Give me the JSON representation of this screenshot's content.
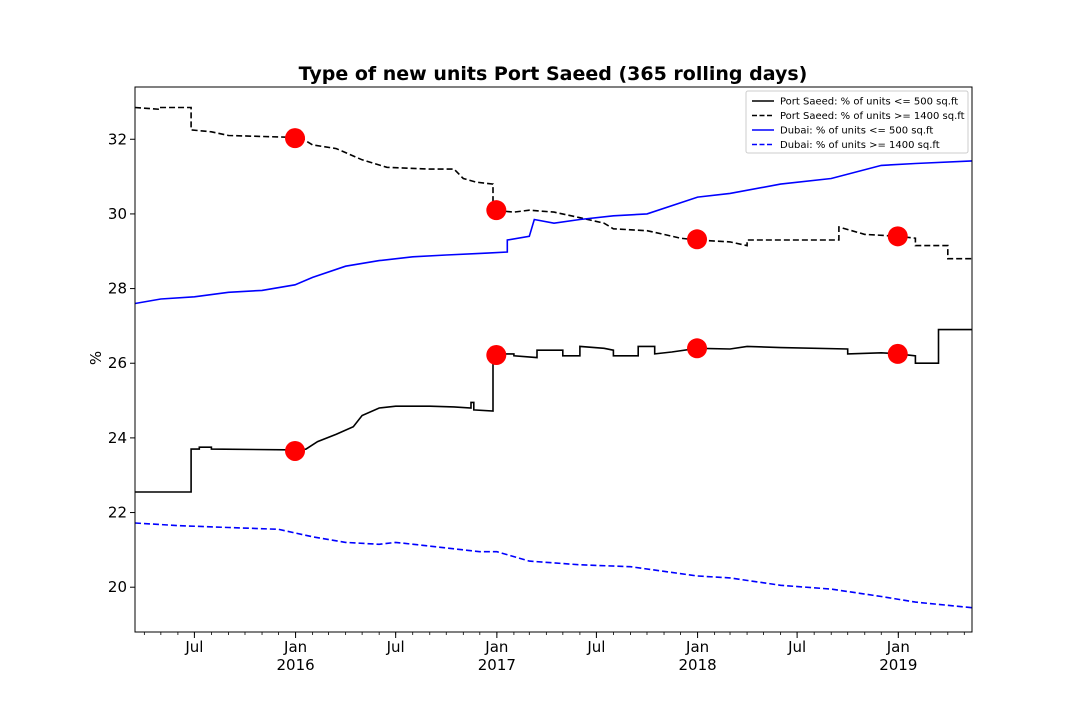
{
  "chart_data": {
    "type": "line",
    "title": "Type of new units Port Saeed (365 rolling days)",
    "xlabel": "",
    "ylabel": "%",
    "xlim": [
      "2015-03-15",
      "2019-05-15"
    ],
    "ylim": [
      18.8,
      33.4
    ],
    "yticks": [
      20,
      22,
      24,
      26,
      28,
      30,
      32
    ],
    "xticks": [
      {
        "date": "2015-07-01",
        "label": "Jul",
        "sub": ""
      },
      {
        "date": "2016-01-01",
        "label": "Jan",
        "sub": "2016"
      },
      {
        "date": "2016-07-01",
        "label": "Jul",
        "sub": ""
      },
      {
        "date": "2017-01-01",
        "label": "Jan",
        "sub": "2017"
      },
      {
        "date": "2017-07-01",
        "label": "Jul",
        "sub": ""
      },
      {
        "date": "2018-01-01",
        "label": "Jan",
        "sub": "2018"
      },
      {
        "date": "2018-07-01",
        "label": "Jul",
        "sub": ""
      },
      {
        "date": "2019-01-01",
        "label": "Jan",
        "sub": "2019"
      }
    ],
    "grid": false,
    "legend_position": "top-right",
    "series": [
      {
        "name": "Port Saeed: % of units <= 500 sq.ft",
        "color": "#000000",
        "dash": "solid",
        "points": [
          [
            "2015-03-15",
            22.55
          ],
          [
            "2015-06-25",
            22.55
          ],
          [
            "2015-06-25",
            23.7
          ],
          [
            "2015-07-10",
            23.7
          ],
          [
            "2015-07-10",
            23.75
          ],
          [
            "2015-08-01",
            23.75
          ],
          [
            "2015-08-01",
            23.7
          ],
          [
            "2015-12-15",
            23.68
          ],
          [
            "2015-12-31",
            23.65
          ],
          [
            "2016-01-20",
            23.7
          ],
          [
            "2016-02-10",
            23.9
          ],
          [
            "2016-03-15",
            24.1
          ],
          [
            "2016-04-15",
            24.3
          ],
          [
            "2016-05-01",
            24.6
          ],
          [
            "2016-06-01",
            24.8
          ],
          [
            "2016-07-01",
            24.85
          ],
          [
            "2016-09-01",
            24.85
          ],
          [
            "2016-10-15",
            24.83
          ],
          [
            "2016-11-15",
            24.8
          ],
          [
            "2016-11-15",
            24.95
          ],
          [
            "2016-11-20",
            24.95
          ],
          [
            "2016-11-20",
            24.75
          ],
          [
            "2016-12-25",
            24.72
          ],
          [
            "2016-12-25",
            26.25
          ],
          [
            "2017-02-01",
            26.25
          ],
          [
            "2017-02-01",
            26.2
          ],
          [
            "2017-03-15",
            26.15
          ],
          [
            "2017-03-15",
            26.35
          ],
          [
            "2017-05-01",
            26.35
          ],
          [
            "2017-05-01",
            26.2
          ],
          [
            "2017-06-01",
            26.2
          ],
          [
            "2017-06-01",
            26.45
          ],
          [
            "2017-07-15",
            26.4
          ],
          [
            "2017-08-01",
            26.35
          ],
          [
            "2017-08-01",
            26.2
          ],
          [
            "2017-09-15",
            26.2
          ],
          [
            "2017-09-15",
            26.45
          ],
          [
            "2017-10-15",
            26.45
          ],
          [
            "2017-10-15",
            26.25
          ],
          [
            "2017-11-15",
            26.3
          ],
          [
            "2018-01-01",
            26.4
          ],
          [
            "2018-03-01",
            26.38
          ],
          [
            "2018-04-01",
            26.45
          ],
          [
            "2018-06-01",
            26.42
          ],
          [
            "2018-10-01",
            26.38
          ],
          [
            "2018-10-01",
            26.25
          ],
          [
            "2018-12-01",
            26.28
          ],
          [
            "2019-01-01",
            26.25
          ],
          [
            "2019-02-01",
            26.2
          ],
          [
            "2019-02-01",
            26.0
          ],
          [
            "2019-03-15",
            26.0
          ],
          [
            "2019-03-15",
            26.9
          ],
          [
            "2019-05-15",
            26.9
          ]
        ]
      },
      {
        "name": "Port Saeed: % of units >= 1400 sq.ft",
        "color": "#000000",
        "dash": "dashed",
        "points": [
          [
            "2015-03-15",
            32.85
          ],
          [
            "2015-05-01",
            32.8
          ],
          [
            "2015-05-01",
            32.85
          ],
          [
            "2015-06-25",
            32.85
          ],
          [
            "2015-06-25",
            32.25
          ],
          [
            "2015-08-01",
            32.2
          ],
          [
            "2015-09-01",
            32.1
          ],
          [
            "2015-12-31",
            32.05
          ],
          [
            "2016-01-15",
            32.0
          ],
          [
            "2016-02-01",
            31.85
          ],
          [
            "2016-03-15",
            31.75
          ],
          [
            "2016-05-01",
            31.45
          ],
          [
            "2016-06-15",
            31.25
          ],
          [
            "2016-09-01",
            31.2
          ],
          [
            "2016-10-15",
            31.2
          ],
          [
            "2016-11-01",
            30.95
          ],
          [
            "2016-11-25",
            30.85
          ],
          [
            "2016-12-25",
            30.8
          ],
          [
            "2016-12-25",
            30.1
          ],
          [
            "2017-02-01",
            30.05
          ],
          [
            "2017-03-01",
            30.1
          ],
          [
            "2017-04-15",
            30.05
          ],
          [
            "2017-06-01",
            29.9
          ],
          [
            "2017-07-15",
            29.75
          ],
          [
            "2017-08-01",
            29.6
          ],
          [
            "2017-10-01",
            29.55
          ],
          [
            "2017-11-01",
            29.45
          ],
          [
            "2017-12-01",
            29.35
          ],
          [
            "2018-01-01",
            29.3
          ],
          [
            "2018-03-01",
            29.25
          ],
          [
            "2018-04-01",
            29.15
          ],
          [
            "2018-04-01",
            29.3
          ],
          [
            "2018-06-01",
            29.3
          ],
          [
            "2018-09-15",
            29.3
          ],
          [
            "2018-09-15",
            29.65
          ],
          [
            "2018-11-01",
            29.45
          ],
          [
            "2019-01-01",
            29.4
          ],
          [
            "2019-02-01",
            29.35
          ],
          [
            "2019-02-01",
            29.15
          ],
          [
            "2019-04-01",
            29.15
          ],
          [
            "2019-04-01",
            28.8
          ],
          [
            "2019-05-15",
            28.8
          ]
        ]
      },
      {
        "name": "Dubai: % of units <= 500 sq.ft",
        "color": "#0000ff",
        "dash": "solid",
        "points": [
          [
            "2015-03-15",
            27.6
          ],
          [
            "2015-05-01",
            27.72
          ],
          [
            "2015-07-01",
            27.78
          ],
          [
            "2015-09-01",
            27.9
          ],
          [
            "2015-11-01",
            27.95
          ],
          [
            "2015-12-31",
            28.1
          ],
          [
            "2016-02-01",
            28.3
          ],
          [
            "2016-04-01",
            28.6
          ],
          [
            "2016-06-01",
            28.75
          ],
          [
            "2016-08-01",
            28.85
          ],
          [
            "2016-10-01",
            28.9
          ],
          [
            "2016-12-15",
            28.95
          ],
          [
            "2017-01-20",
            28.98
          ],
          [
            "2017-01-20",
            29.3
          ],
          [
            "2017-03-01",
            29.4
          ],
          [
            "2017-03-10",
            29.85
          ],
          [
            "2017-04-15",
            29.75
          ],
          [
            "2017-06-01",
            29.85
          ],
          [
            "2017-08-01",
            29.95
          ],
          [
            "2017-10-01",
            30.0
          ],
          [
            "2018-01-01",
            30.45
          ],
          [
            "2018-03-01",
            30.55
          ],
          [
            "2018-06-01",
            30.8
          ],
          [
            "2018-09-01",
            30.95
          ],
          [
            "2018-12-01",
            31.3
          ],
          [
            "2019-02-01",
            31.35
          ],
          [
            "2019-05-15",
            31.42
          ]
        ]
      },
      {
        "name": "Dubai: % of units >= 1400 sq.ft",
        "color": "#0000ff",
        "dash": "dashed",
        "points": [
          [
            "2015-03-15",
            21.72
          ],
          [
            "2015-06-01",
            21.65
          ],
          [
            "2015-09-01",
            21.6
          ],
          [
            "2015-12-01",
            21.55
          ],
          [
            "2016-02-01",
            21.35
          ],
          [
            "2016-04-01",
            21.2
          ],
          [
            "2016-06-01",
            21.15
          ],
          [
            "2016-07-01",
            21.2
          ],
          [
            "2016-09-01",
            21.1
          ],
          [
            "2016-12-01",
            20.95
          ],
          [
            "2017-01-01",
            20.95
          ],
          [
            "2017-03-01",
            20.7
          ],
          [
            "2017-06-01",
            20.6
          ],
          [
            "2017-09-01",
            20.55
          ],
          [
            "2018-01-01",
            20.3
          ],
          [
            "2018-03-01",
            20.25
          ],
          [
            "2018-06-01",
            20.05
          ],
          [
            "2018-09-01",
            19.95
          ],
          [
            "2018-12-01",
            19.75
          ],
          [
            "2019-02-01",
            19.6
          ],
          [
            "2019-05-15",
            19.45
          ]
        ]
      }
    ],
    "markers": {
      "color": "#ff0000",
      "points": [
        [
          "2015-12-31",
          32.03
        ],
        [
          "2016-12-31",
          30.1
        ],
        [
          "2017-12-31",
          29.32
        ],
        [
          "2018-12-31",
          29.4
        ],
        [
          "2015-12-31",
          23.65
        ],
        [
          "2016-12-31",
          26.22
        ],
        [
          "2017-12-31",
          26.4
        ],
        [
          "2018-12-31",
          26.25
        ]
      ]
    }
  }
}
